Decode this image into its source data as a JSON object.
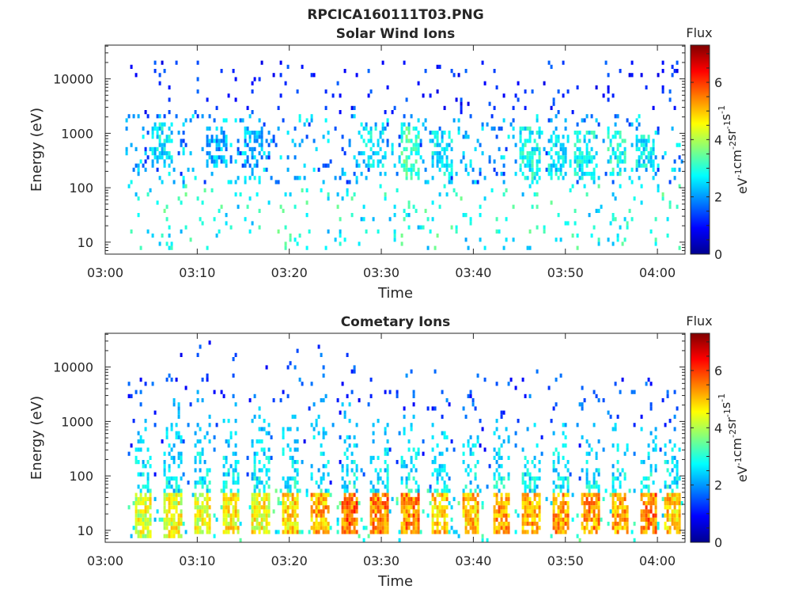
{
  "figure": {
    "title": "RPCICA160111T03.PNG"
  },
  "colorbar": {
    "title": "Flux",
    "label_parts": [
      "eV",
      "-1",
      "cm",
      "-2",
      "sr",
      "-1",
      "s",
      "-1"
    ],
    "ticks": [
      "0",
      "2",
      "4",
      "6"
    ],
    "range": [
      0,
      7.3
    ],
    "colormap": "jet"
  },
  "chart_data": [
    {
      "type": "heatmap",
      "title": "Solar Wind Ions",
      "xlabel": "Time",
      "ylabel": "Energy (eV)",
      "x_ticks": [
        "03:00",
        "03:10",
        "03:20",
        "03:30",
        "03:40",
        "03:50",
        "04:00"
      ],
      "y_ticks": [
        "10",
        "100",
        "1000",
        "10000"
      ],
      "xlim_minutes": [
        0,
        63
      ],
      "ylim_log10": [
        0.78,
        4.62
      ],
      "y_scale": "log",
      "time_start": "03:00",
      "structures": [
        {
          "t_min": 6.0,
          "e_log_range": [
            2.3,
            3.2
          ],
          "flux_peak": 3.0
        },
        {
          "t_min": 12.0,
          "e_log_range": [
            2.3,
            3.1
          ],
          "flux_peak": 2.6
        },
        {
          "t_min": 16.0,
          "e_log_range": [
            2.3,
            3.1
          ],
          "flux_peak": 2.6
        },
        {
          "t_min": 29.0,
          "e_log_range": [
            2.3,
            3.1
          ],
          "flux_peak": 3.0
        },
        {
          "t_min": 33.0,
          "e_log_range": [
            2.1,
            3.1
          ],
          "flux_peak": 3.6
        },
        {
          "t_min": 36.5,
          "e_log_range": [
            2.2,
            3.0
          ],
          "flux_peak": 3.0
        },
        {
          "t_min": 46.0,
          "e_log_range": [
            2.1,
            3.1
          ],
          "flux_peak": 3.2
        },
        {
          "t_min": 49.0,
          "e_log_range": [
            2.1,
            3.0
          ],
          "flux_peak": 3.0
        },
        {
          "t_min": 52.0,
          "e_log_range": [
            2.1,
            3.0
          ],
          "flux_peak": 3.1
        },
        {
          "t_min": 55.5,
          "e_log_range": [
            2.2,
            3.0
          ],
          "flux_peak": 3.2
        },
        {
          "t_min": 58.5,
          "e_log_range": [
            2.3,
            2.9
          ],
          "flux_peak": 3.0
        }
      ]
    },
    {
      "type": "heatmap",
      "title": "Cometary Ions",
      "xlabel": "Time",
      "ylabel": "Energy (eV)",
      "x_ticks": [
        "03:00",
        "03:10",
        "03:20",
        "03:30",
        "03:40",
        "03:50",
        "04:00"
      ],
      "y_ticks": [
        "10",
        "100",
        "1000",
        "10000"
      ],
      "xlim_minutes": [
        0,
        63
      ],
      "ylim_log10": [
        0.78,
        4.62
      ],
      "y_scale": "log",
      "time_start": "03:00",
      "structures": [
        {
          "t_min": 4.0,
          "e_log_range": [
            0.8,
            3.1
          ],
          "flux_peak": 4.8
        },
        {
          "t_min": 7.2,
          "e_log_range": [
            0.8,
            3.4
          ],
          "flux_peak": 4.9
        },
        {
          "t_min": 10.4,
          "e_log_range": [
            0.9,
            3.6
          ],
          "flux_peak": 4.9
        },
        {
          "t_min": 13.6,
          "e_log_range": [
            0.9,
            3.3
          ],
          "flux_peak": 5.1
        },
        {
          "t_min": 16.8,
          "e_log_range": [
            0.9,
            3.4
          ],
          "flux_peak": 5.0
        },
        {
          "t_min": 20.0,
          "e_log_range": [
            0.9,
            3.4
          ],
          "flux_peak": 5.3
        },
        {
          "t_min": 23.2,
          "e_log_range": [
            0.9,
            3.5
          ],
          "flux_peak": 5.6
        },
        {
          "t_min": 26.5,
          "e_log_range": [
            0.9,
            3.3
          ],
          "flux_peak": 6.1
        },
        {
          "t_min": 29.7,
          "e_log_range": [
            0.9,
            3.2
          ],
          "flux_peak": 5.9
        },
        {
          "t_min": 33.0,
          "e_log_range": [
            0.9,
            3.1
          ],
          "flux_peak": 5.9
        },
        {
          "t_min": 36.3,
          "e_log_range": [
            0.9,
            3.0
          ],
          "flux_peak": 5.4
        },
        {
          "t_min": 39.6,
          "e_log_range": [
            0.9,
            3.0
          ],
          "flux_peak": 5.5
        },
        {
          "t_min": 42.9,
          "e_log_range": [
            0.9,
            3.0
          ],
          "flux_peak": 5.8
        },
        {
          "t_min": 46.2,
          "e_log_range": [
            0.9,
            3.1
          ],
          "flux_peak": 5.6
        },
        {
          "t_min": 49.4,
          "e_log_range": [
            0.9,
            3.0
          ],
          "flux_peak": 5.7
        },
        {
          "t_min": 52.6,
          "e_log_range": [
            0.9,
            2.9
          ],
          "flux_peak": 5.8
        },
        {
          "t_min": 55.8,
          "e_log_range": [
            0.9,
            2.9
          ],
          "flux_peak": 5.6
        },
        {
          "t_min": 59.0,
          "e_log_range": [
            0.9,
            2.9
          ],
          "flux_peak": 6.0
        },
        {
          "t_min": 61.5,
          "e_log_range": [
            0.9,
            2.8
          ],
          "flux_peak": 5.4
        }
      ]
    }
  ]
}
